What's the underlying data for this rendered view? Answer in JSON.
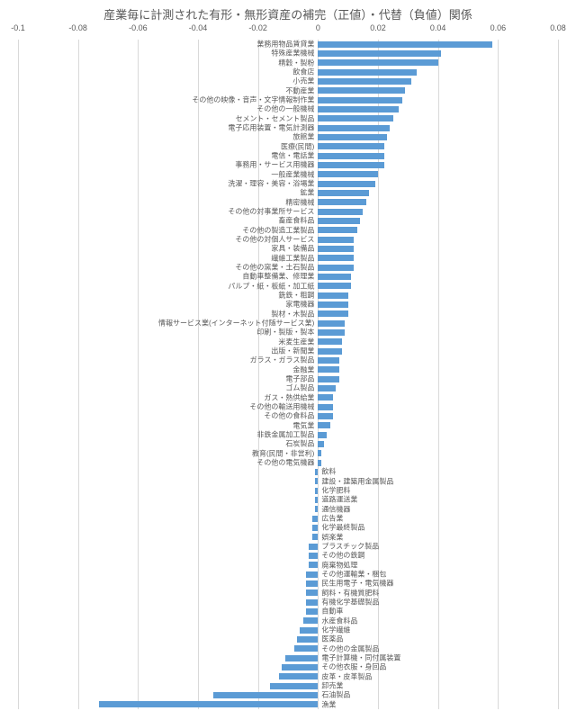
{
  "chart": {
    "type": "bar-horizontal",
    "title": "産業毎に計測された有形・無形資産の補完（正値）・代替（負値）関係",
    "title_fontsize": 13,
    "title_color": "#595959",
    "background_color": "#ffffff",
    "grid_color": "#d9d9d9",
    "bar_color": "#5b9bd5",
    "label_fontsize": 8,
    "label_color": "#595959",
    "axis_fontsize": 9,
    "xlim": [
      -0.1,
      0.08
    ],
    "xticks": [
      -0.1,
      -0.08,
      -0.06,
      -0.04,
      -0.02,
      0,
      0.02,
      0.04,
      0.06,
      0.08
    ],
    "xtick_labels": [
      "-0.1",
      "-0.08",
      "-0.06",
      "-0.04",
      "-0.02",
      "0",
      "0.02",
      "0.04",
      "0.06",
      "0.08"
    ],
    "bar_fill_ratio": 0.7,
    "items": [
      {
        "label": "業務用物品賃貸業",
        "value": 0.058
      },
      {
        "label": "特殊産業機械",
        "value": 0.041
      },
      {
        "label": "精穀・製粉",
        "value": 0.04
      },
      {
        "label": "飲食店",
        "value": 0.033
      },
      {
        "label": "小売業",
        "value": 0.031
      },
      {
        "label": "不動産業",
        "value": 0.029
      },
      {
        "label": "その他の映像・音声・文字情報制作業",
        "value": 0.028
      },
      {
        "label": "その他の一般機械",
        "value": 0.027
      },
      {
        "label": "セメント・セメント製品",
        "value": 0.025
      },
      {
        "label": "電子応用装置・電気計測器",
        "value": 0.024
      },
      {
        "label": "旅館業",
        "value": 0.023
      },
      {
        "label": "医療(民間)",
        "value": 0.022
      },
      {
        "label": "電信・電話業",
        "value": 0.022
      },
      {
        "label": "事務用・サービス用機器",
        "value": 0.022
      },
      {
        "label": "一般産業機械",
        "value": 0.02
      },
      {
        "label": "洗濯・理容・美容・浴場業",
        "value": 0.019
      },
      {
        "label": "鉱業",
        "value": 0.017
      },
      {
        "label": "精密機械",
        "value": 0.016
      },
      {
        "label": "その他の対事業所サービス",
        "value": 0.015
      },
      {
        "label": "畜産食料品",
        "value": 0.014
      },
      {
        "label": "その他の製造工業製品",
        "value": 0.013
      },
      {
        "label": "その他の対個人サービス",
        "value": 0.012
      },
      {
        "label": "家具・装備品",
        "value": 0.012
      },
      {
        "label": "繊維工業製品",
        "value": 0.012
      },
      {
        "label": "その他の窯業・土石製品",
        "value": 0.012
      },
      {
        "label": "自動車整備業、修理業",
        "value": 0.011
      },
      {
        "label": "パルプ・紙・板紙・加工紙",
        "value": 0.011
      },
      {
        "label": "銑鉄・粗鋼",
        "value": 0.01
      },
      {
        "label": "家電機器",
        "value": 0.01
      },
      {
        "label": "製材・木製品",
        "value": 0.01
      },
      {
        "label": "情報サービス業(インターネット付随サービス業)",
        "value": 0.009
      },
      {
        "label": "印刷・製版・製本",
        "value": 0.009
      },
      {
        "label": "米麦生産業",
        "value": 0.008
      },
      {
        "label": "出版・新聞業",
        "value": 0.008
      },
      {
        "label": "ガラス・ガラス製品",
        "value": 0.007
      },
      {
        "label": "金融業",
        "value": 0.007
      },
      {
        "label": "電子部品",
        "value": 0.007
      },
      {
        "label": "ゴム製品",
        "value": 0.006
      },
      {
        "label": "ガス・熱供給業",
        "value": 0.005
      },
      {
        "label": "その他の輸送用機械",
        "value": 0.005
      },
      {
        "label": "その他の食料品",
        "value": 0.005
      },
      {
        "label": "電気業",
        "value": 0.004
      },
      {
        "label": "非鉄金属加工製品",
        "value": 0.003
      },
      {
        "label": "石炭製品",
        "value": 0.002
      },
      {
        "label": "教育(民間・非営利)",
        "value": 0.001
      },
      {
        "label": "その他の電気機器",
        "value": 0.001
      },
      {
        "label": "飲料",
        "value": -0.001
      },
      {
        "label": "建設・建築用金属製品",
        "value": -0.001
      },
      {
        "label": "化学肥料",
        "value": -0.001
      },
      {
        "label": "道路運送業",
        "value": -0.001
      },
      {
        "label": "通信機器",
        "value": -0.001
      },
      {
        "label": "広告業",
        "value": -0.002
      },
      {
        "label": "化学最終製品",
        "value": -0.002
      },
      {
        "label": "娯楽業",
        "value": -0.002
      },
      {
        "label": "プラスチック製品",
        "value": -0.003
      },
      {
        "label": "その他の鉄鋼",
        "value": -0.003
      },
      {
        "label": "廃棄物処理",
        "value": -0.003
      },
      {
        "label": "その他運輸業・梱包",
        "value": -0.004
      },
      {
        "label": "民生用電子・電気機器",
        "value": -0.004
      },
      {
        "label": "飼料・有機質肥料",
        "value": -0.004
      },
      {
        "label": "有機化学基礎製品",
        "value": -0.004
      },
      {
        "label": "自動車",
        "value": -0.004
      },
      {
        "label": "水産食料品",
        "value": -0.005
      },
      {
        "label": "化学繊維",
        "value": -0.006
      },
      {
        "label": "医薬品",
        "value": -0.007
      },
      {
        "label": "その他の金属製品",
        "value": -0.008
      },
      {
        "label": "電子計算機・同付属装置",
        "value": -0.011
      },
      {
        "label": "その他衣服・身回品",
        "value": -0.012
      },
      {
        "label": "皮革・皮革製品",
        "value": -0.013
      },
      {
        "label": "卸売業",
        "value": -0.016
      },
      {
        "label": "石油製品",
        "value": -0.035
      },
      {
        "label": "漁業",
        "value": -0.073
      }
    ]
  }
}
